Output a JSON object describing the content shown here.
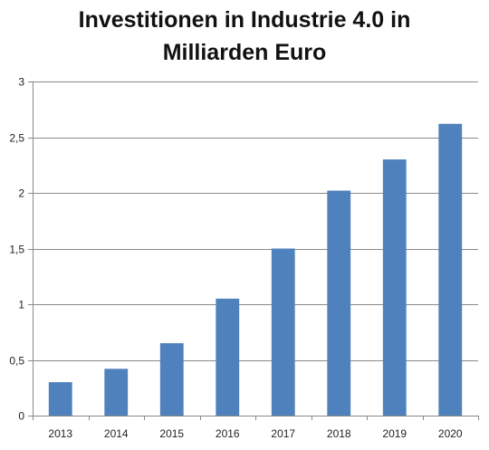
{
  "chart_data": {
    "type": "bar",
    "title_lines": [
      "Investitionen in Industrie 4.0 in",
      "Milliarden Euro"
    ],
    "categories": [
      "2013",
      "2014",
      "2015",
      "2016",
      "2017",
      "2018",
      "2019",
      "2020"
    ],
    "values": [
      0.3,
      0.42,
      0.65,
      1.05,
      1.5,
      2.02,
      2.3,
      2.62
    ],
    "ylim": [
      0,
      3
    ],
    "yticks": [
      {
        "value": 0,
        "label": "0"
      },
      {
        "value": 0.5,
        "label": "0,5"
      },
      {
        "value": 1,
        "label": "1"
      },
      {
        "value": 1.5,
        "label": "1,5"
      },
      {
        "value": 2,
        "label": "2"
      },
      {
        "value": 2.5,
        "label": "2,5"
      },
      {
        "value": 3,
        "label": "3"
      }
    ],
    "grid": true,
    "legend": "none",
    "bar_color": "#4f81bd",
    "grid_color": "#898989",
    "axis_color": "#898989"
  }
}
